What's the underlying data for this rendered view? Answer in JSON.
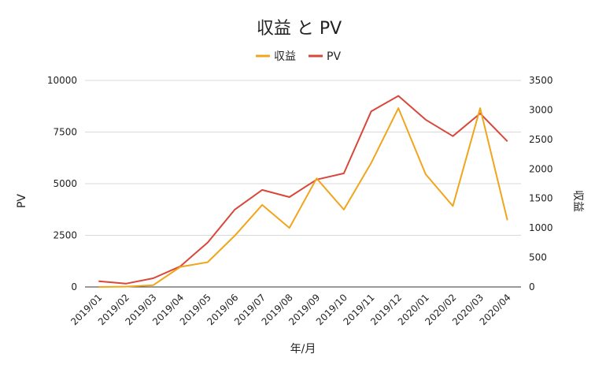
{
  "chart_data": {
    "type": "line",
    "title": "収益 と PV",
    "categories": [
      "2019/01",
      "2019/02",
      "2019/03",
      "2019/04",
      "2019/05",
      "2019/06",
      "2019/07",
      "2019/08",
      "2019/09",
      "2019/10",
      "2019/11",
      "2019/12",
      "2020/01",
      "2020/02",
      "2020/03",
      "2020/04"
    ],
    "series": [
      {
        "name": "収益",
        "axis": "right",
        "color": "#F1A51C",
        "values": [
          0,
          5,
          30,
          340,
          420,
          870,
          1390,
          1000,
          1840,
          1310,
          2100,
          3030,
          1910,
          1370,
          3030,
          1130
        ]
      },
      {
        "name": "PV",
        "axis": "left",
        "color": "#D9473B",
        "values": [
          280,
          160,
          420,
          1000,
          2150,
          3750,
          4700,
          4350,
          5200,
          5500,
          8500,
          9250,
          8100,
          7300,
          8400,
          7050
        ]
      }
    ],
    "xlabel": "年/月",
    "ylabel": "PV",
    "y2label": "収益",
    "ylim": [
      0,
      10000
    ],
    "yticks": [
      0,
      2500,
      5000,
      7500,
      10000
    ],
    "y2lim": [
      0,
      3500
    ],
    "y2ticks": [
      0,
      500,
      1000,
      1500,
      2000,
      2500,
      3000,
      3500
    ],
    "grid": true,
    "legend_position": "top"
  }
}
